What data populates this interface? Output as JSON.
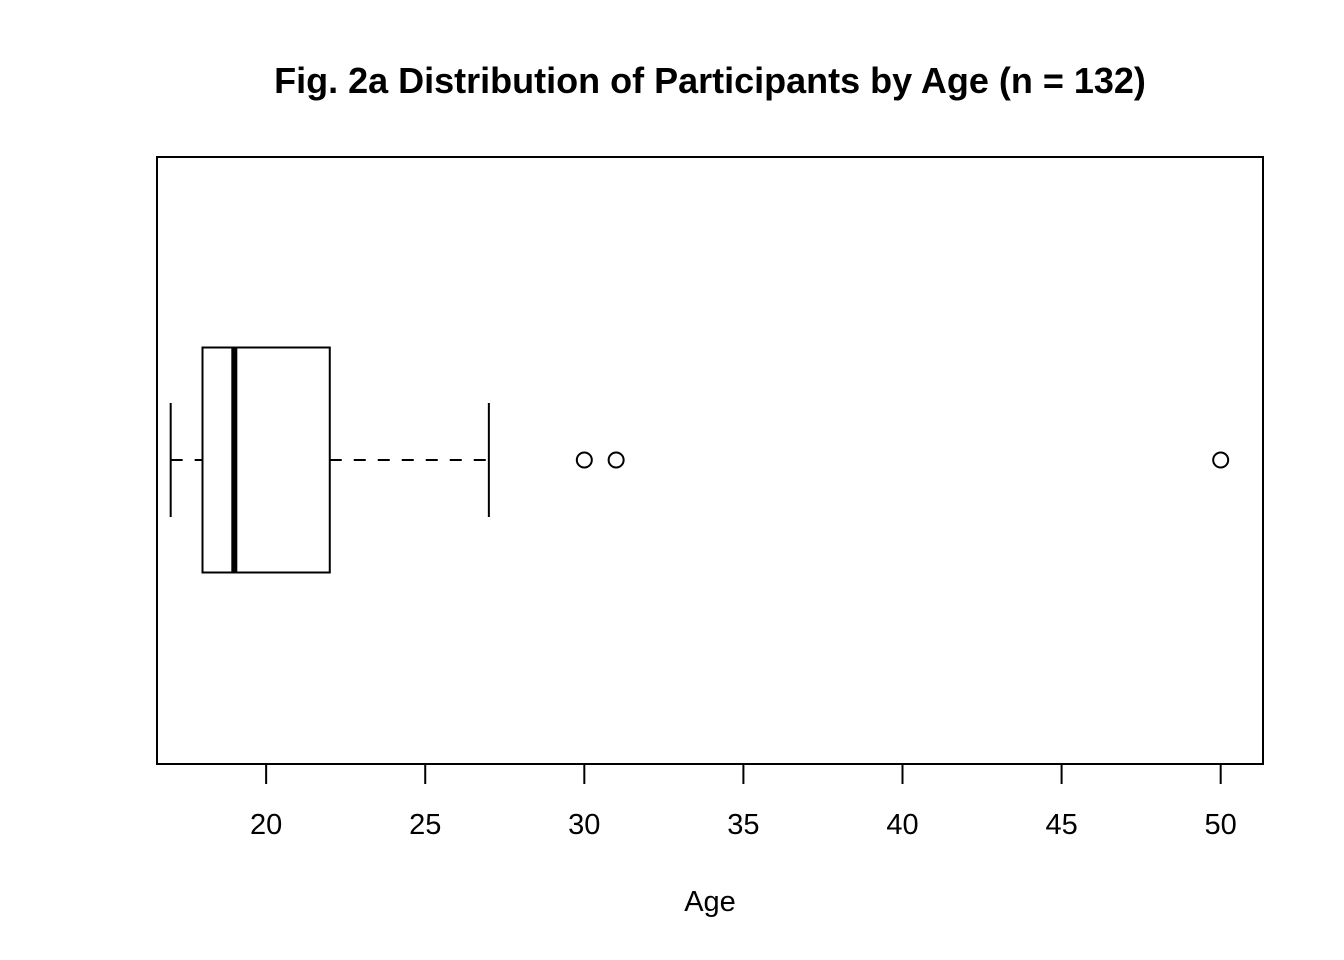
{
  "chart_data": {
    "type": "boxplot",
    "orientation": "horizontal",
    "title": "Fig. 2a Distribution of Participants by Age (n = 132)",
    "xlabel": "Age",
    "ylabel": "",
    "xlim": [
      16.57,
      51.33
    ],
    "x_ticks": [
      20,
      25,
      30,
      35,
      40,
      45,
      50
    ],
    "x_tick_labels": [
      "20",
      "25",
      "30",
      "35",
      "40",
      "45",
      "50"
    ],
    "grid": false,
    "legend": "none",
    "series": [
      {
        "stats": {
          "whisker_low": 17,
          "q1": 18,
          "median": 19,
          "q3": 22,
          "whisker_high": 27
        },
        "outliers": [
          30,
          31,
          50
        ]
      }
    ]
  }
}
